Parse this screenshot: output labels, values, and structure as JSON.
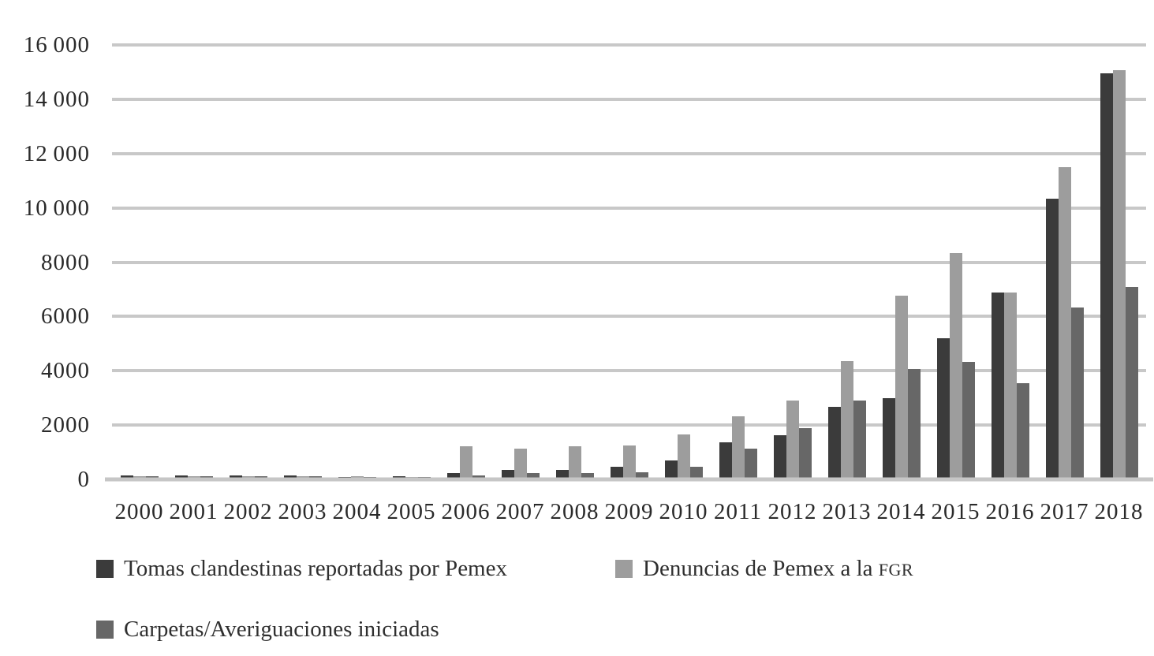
{
  "figure": {
    "background": "#ffffff",
    "text_color": "#2a2a2a",
    "gridline_color": "#c8c8c8"
  },
  "chart_data": {
    "type": "bar",
    "title": "",
    "xlabel": "",
    "ylabel": "",
    "grid": true,
    "legend_position": "bottom",
    "ylim": [
      0,
      16000
    ],
    "ytick_step": 2000,
    "ytick_labels": [
      "0",
      "2000",
      "4000",
      "6000",
      "8000",
      "10 000",
      "12 000",
      "14 000",
      "16 000"
    ],
    "categories": [
      "2000",
      "2001",
      "2002",
      "2003",
      "2004",
      "2005",
      "2006",
      "2007",
      "2008",
      "2009",
      "2010",
      "2011",
      "2012",
      "2013",
      "2014",
      "2015",
      "2016",
      "2017",
      "2018"
    ],
    "series": [
      {
        "name": "Tomas clandestinas reportadas por Pemex",
        "color": "#3b3b3b",
        "values": [
          110,
          110,
          110,
          110,
          70,
          90,
          210,
          320,
          330,
          440,
          670,
          1330,
          1610,
          2630,
          2970,
          5180,
          6860,
          10300,
          14940
        ]
      },
      {
        "name": "Denuncias de Pemex a la FGR",
        "color": "#9d9d9d",
        "values": [
          75,
          75,
          75,
          75,
          75,
          70,
          1200,
          1090,
          1190,
          1230,
          1640,
          2290,
          2880,
          4330,
          6740,
          8300,
          6860,
          11480,
          15030
        ]
      },
      {
        "name": "Carpetas/Averiguaciones iniciadas",
        "color": "#676767",
        "values": [
          75,
          75,
          75,
          75,
          65,
          60,
          110,
          190,
          210,
          240,
          450,
          1090,
          1850,
          2870,
          4050,
          4290,
          3500,
          6300,
          7070
        ]
      }
    ]
  },
  "legend": {
    "rows": [
      [
        {
          "label": "Tomas clandestinas reportadas por Pemex",
          "caps_suffix": "",
          "color": "#3b3b3b"
        },
        {
          "label": "Denuncias de Pemex a la ",
          "caps_suffix": "FGR",
          "color": "#9d9d9d"
        }
      ],
      [
        {
          "label": "Carpetas/Averiguaciones iniciadas",
          "caps_suffix": "",
          "color": "#676767"
        }
      ]
    ]
  }
}
